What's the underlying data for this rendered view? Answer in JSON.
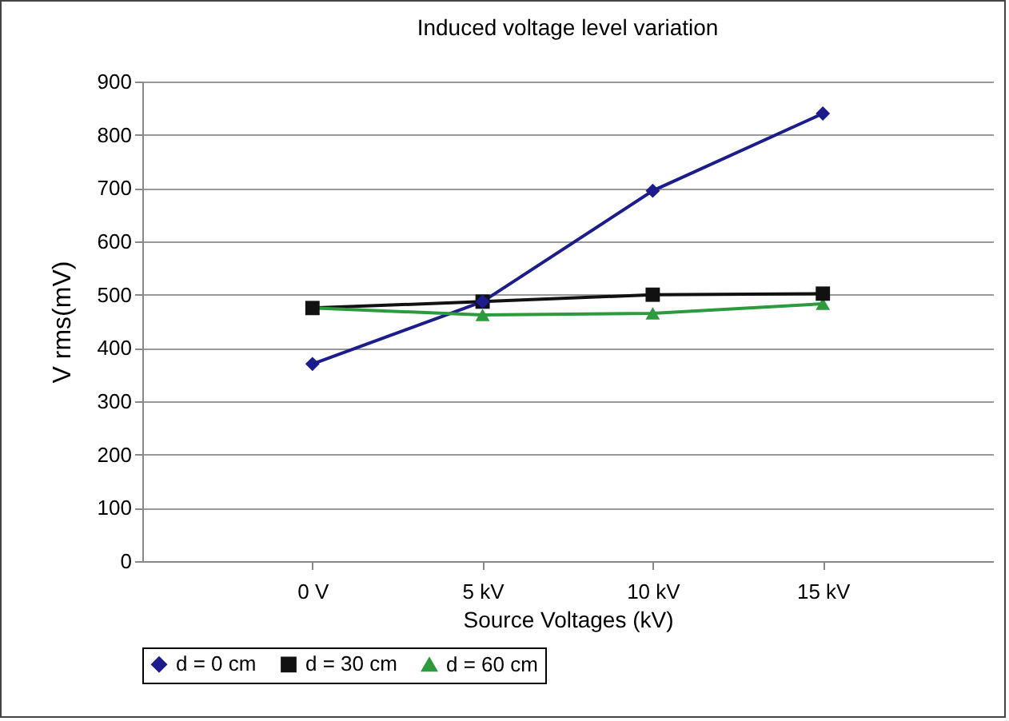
{
  "chart_data": {
    "type": "line",
    "title": "Induced voltage level variation",
    "xlabel": "Source Voltages (kV)",
    "ylabel": "V rms(mV)",
    "categories": [
      "0 V",
      "5 kV",
      "10 kV",
      "15 kV"
    ],
    "series": [
      {
        "name": "d = 0 cm",
        "color": "#1c1c8c",
        "marker": "diamond",
        "values": [
          370,
          487,
          695,
          840
        ]
      },
      {
        "name": "d = 30 cm",
        "color": "#111111",
        "marker": "square",
        "values": [
          475,
          487,
          500,
          502
        ]
      },
      {
        "name": "d = 60 cm",
        "color": "#2e9a3e",
        "marker": "triangle",
        "values": [
          475,
          462,
          465,
          483
        ]
      }
    ],
    "ylim": [
      0,
      900
    ],
    "yticks": [
      0,
      100,
      200,
      300,
      400,
      500,
      600,
      700,
      800,
      900
    ],
    "grid": "y",
    "legend": "bottom"
  }
}
